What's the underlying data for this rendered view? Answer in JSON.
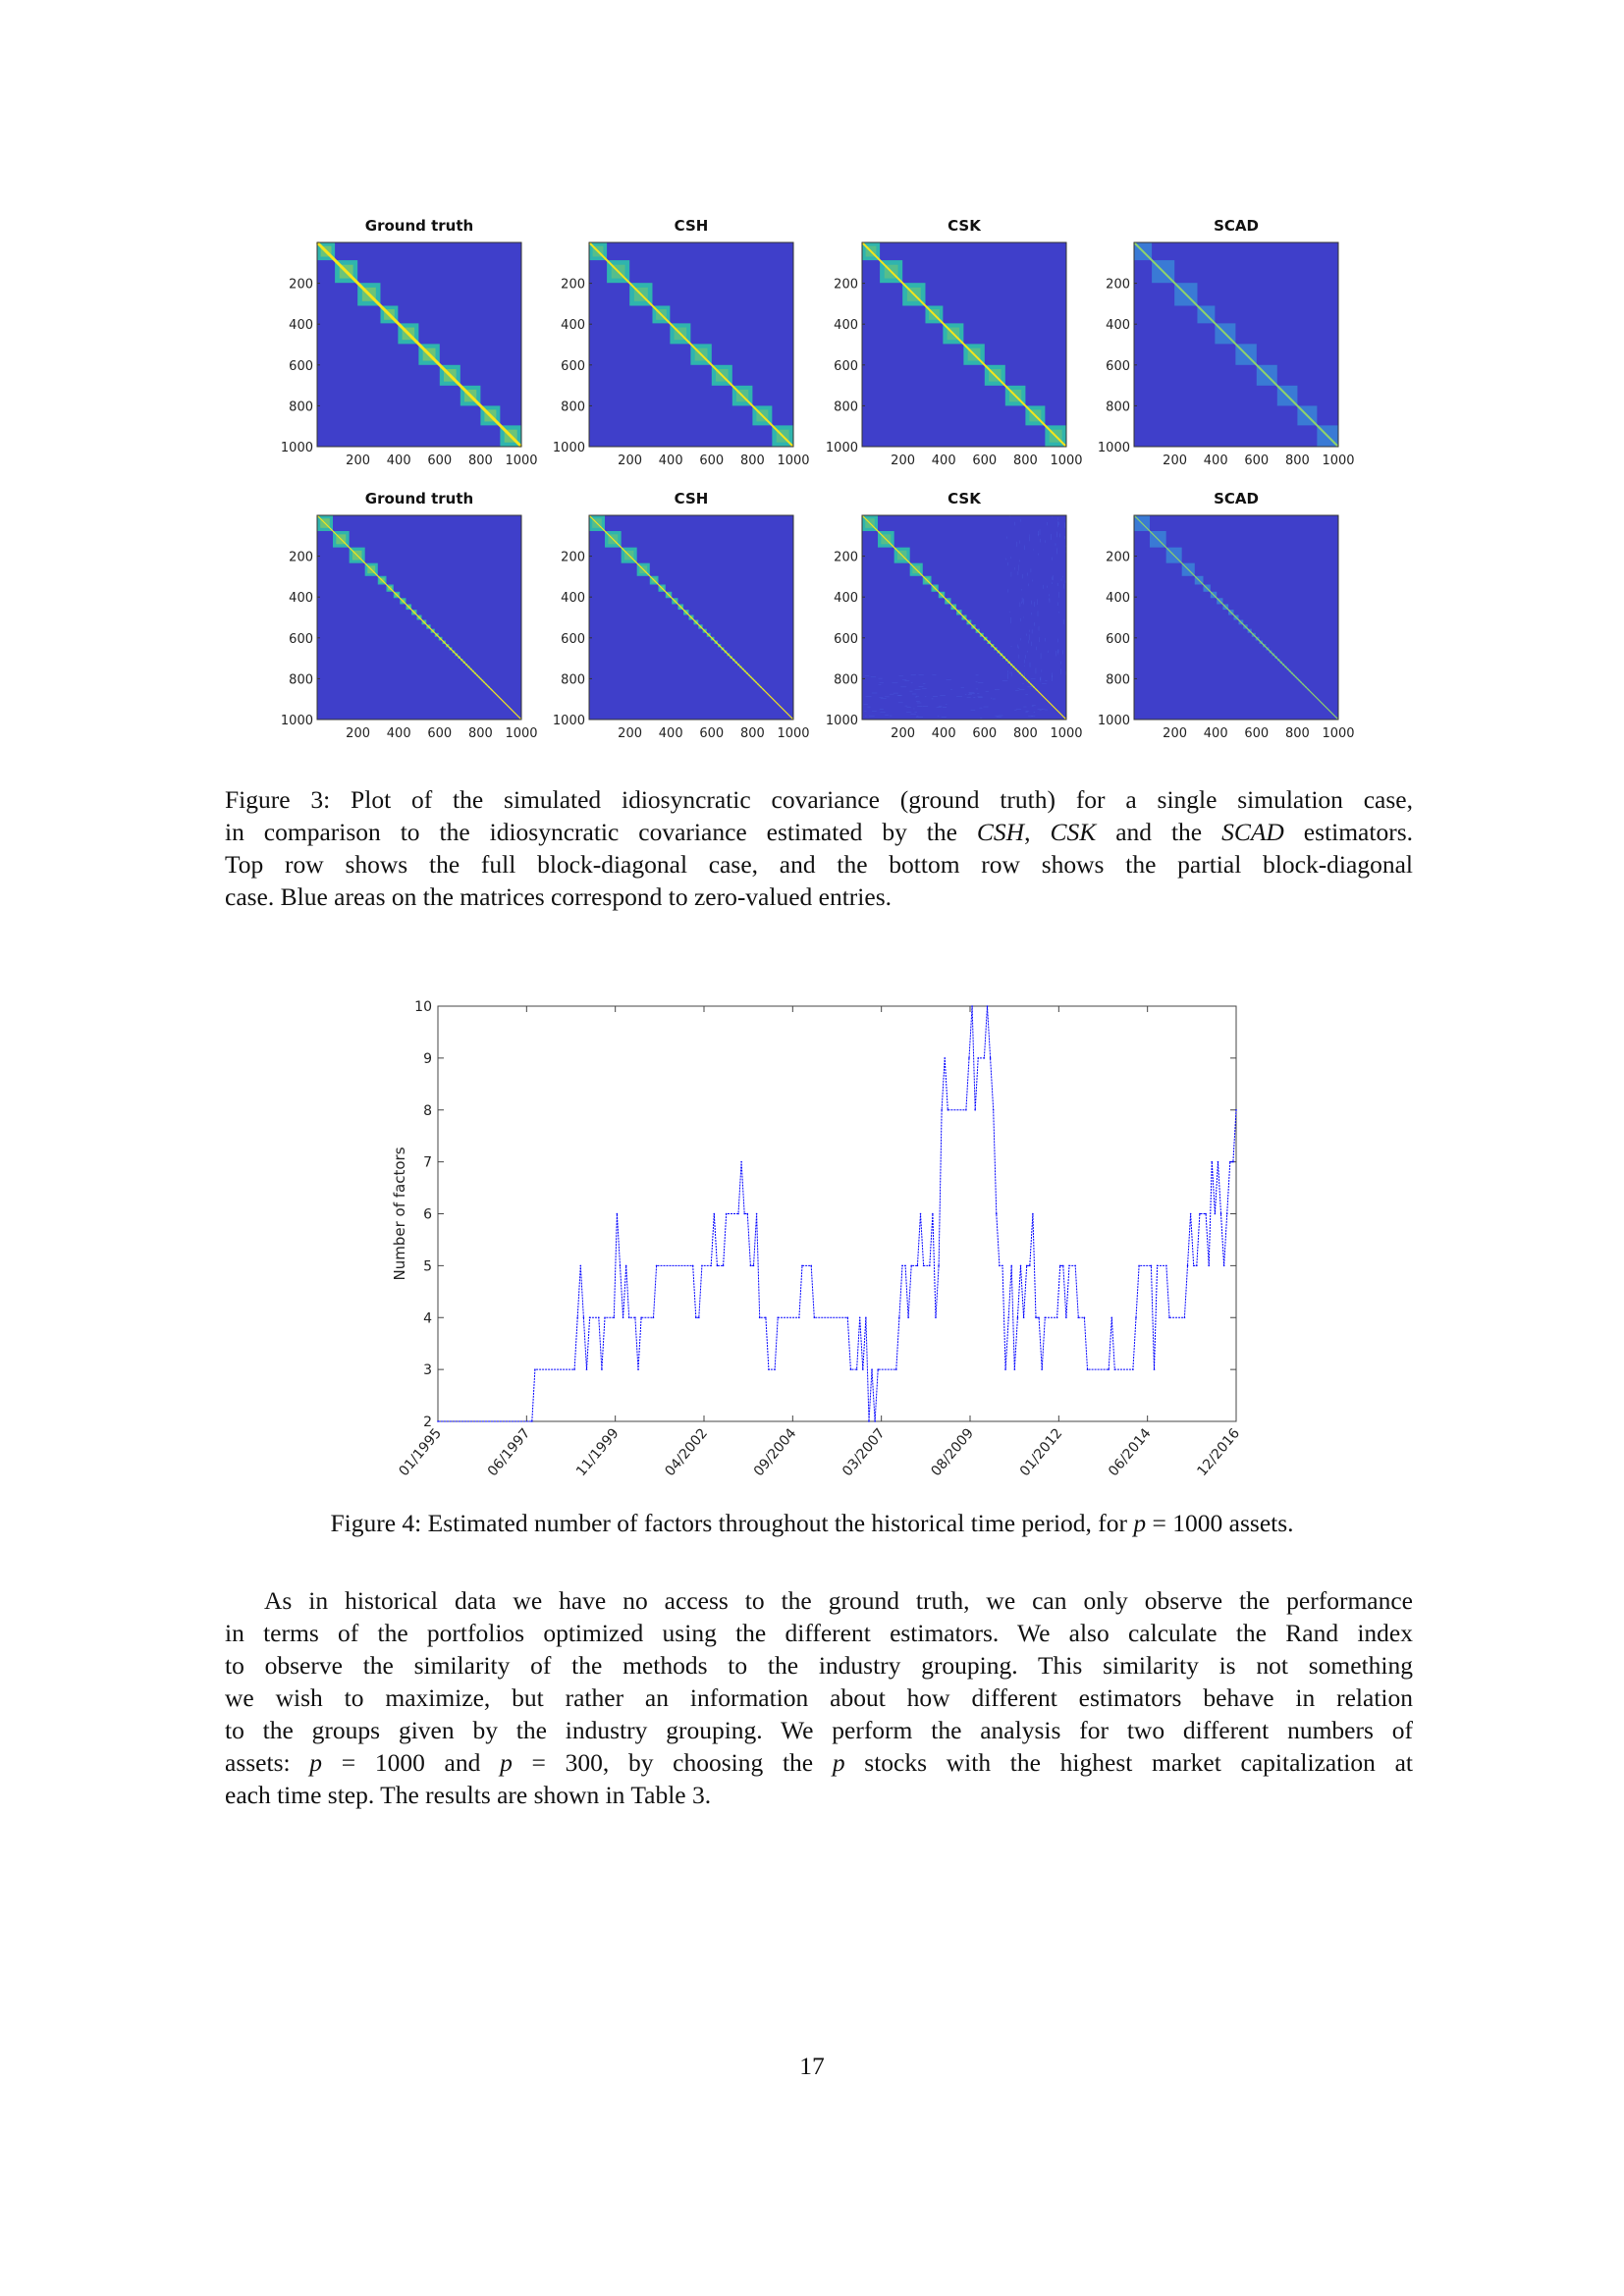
{
  "figure3": {
    "panels_top": [
      {
        "title": "Ground truth",
        "style": "truth"
      },
      {
        "title": "CSH",
        "style": "csh"
      },
      {
        "title": "CSK",
        "style": "csk"
      },
      {
        "title": "SCAD",
        "style": "scad"
      }
    ],
    "panels_bottom": [
      {
        "title": "Ground truth",
        "style": "truth"
      },
      {
        "title": "CSH",
        "style": "csh"
      },
      {
        "title": "CSK",
        "style": "csk"
      },
      {
        "title": "SCAD",
        "style": "scad"
      }
    ],
    "axis_ticks": [
      "200",
      "400",
      "600",
      "800",
      "1000"
    ],
    "block_edges_top": [
      0,
      87,
      198,
      310,
      396,
      497,
      600,
      701,
      800,
      896,
      1000
    ],
    "block_edges_bottom": [
      0,
      77,
      157,
      234,
      297,
      339,
      374,
      405,
      435,
      462,
      488,
      512,
      535,
      556,
      576,
      595,
      613,
      630,
      646,
      661,
      675,
      689,
      702,
      714,
      726,
      737,
      748,
      758,
      768,
      778,
      787,
      796,
      805,
      814,
      822,
      830,
      838,
      846,
      853,
      860
    ],
    "colors": {
      "zero": "#3f3fca",
      "mid": "#2fb4ae",
      "high": "#f5e51b",
      "low": "#3a8fd8"
    },
    "caption": {
      "l1": "Figure 3: Plot of the simulated idiosyncratic covariance (ground truth) for a single simulation case,",
      "l2a": "in comparison to the idiosyncratic covariance estimated by the ",
      "l2b": "CSH",
      "l2c": ", ",
      "l2d": "CSK",
      "l2e": " and the ",
      "l2f": "SCAD",
      "l2g": " estimators.",
      "l3": "Top row shows the full block-diagonal case, and the bottom row shows the partial block-diagonal",
      "l4": "case. Blue areas on the matrices correspond to zero-valued entries."
    }
  },
  "chart_data": {
    "type": "line",
    "title": "",
    "xlabel": "",
    "ylabel": "Number of factors",
    "ylim": [
      2,
      10
    ],
    "xlim_months_since_start": [
      0,
      263
    ],
    "yticks": [
      "2",
      "3",
      "4",
      "5",
      "6",
      "7",
      "8",
      "9",
      "10"
    ],
    "xtick_labels": [
      "01/1995",
      "06/1997",
      "11/1999",
      "04/2002",
      "09/2004",
      "03/2007",
      "08/2009",
      "01/2012",
      "06/2014",
      "12/2016"
    ],
    "series": [
      {
        "name": "Estimated number of factors",
        "color": "#0000ff",
        "x": [
          0,
          31,
          32,
          45,
          46,
          47,
          48,
          49,
          50,
          53,
          54,
          55,
          58,
          59,
          60,
          61,
          62,
          63,
          65,
          66,
          67,
          71,
          72,
          84,
          85,
          86,
          87,
          90,
          91,
          92,
          94,
          95,
          99,
          100,
          101,
          102,
          103,
          104,
          105,
          106,
          108,
          109,
          111,
          112,
          119,
          120,
          123,
          124,
          135,
          136,
          138,
          139,
          140,
          141,
          142,
          143,
          144,
          145,
          151,
          152,
          153,
          154,
          155,
          156,
          158,
          159,
          160,
          162,
          163,
          164,
          165,
          166,
          167,
          168,
          174,
          175,
          176,
          177,
          178,
          180,
          181,
          182,
          183,
          184,
          185,
          186,
          187,
          188,
          189,
          190,
          191,
          192,
          193,
          194,
          195,
          196,
          197,
          198,
          199,
          200,
          204,
          205,
          206,
          207,
          208,
          210,
          211,
          213,
          214,
          221,
          222,
          223,
          229,
          230,
          231,
          235,
          236,
          237,
          240,
          241,
          246,
          247,
          248,
          249,
          250,
          251,
          253,
          254,
          255,
          256,
          257,
          258,
          259,
          260,
          261,
          262,
          263
        ],
        "y": [
          2,
          2,
          3,
          3,
          4,
          5,
          4,
          3,
          4,
          4,
          3,
          4,
          4,
          6,
          5,
          4,
          5,
          4,
          4,
          3,
          4,
          4,
          5,
          5,
          4,
          4,
          5,
          5,
          6,
          5,
          5,
          6,
          6,
          7,
          6,
          6,
          5,
          5,
          6,
          4,
          4,
          3,
          3,
          4,
          4,
          5,
          5,
          4,
          4,
          3,
          3,
          4,
          3,
          4,
          2,
          3,
          2,
          3,
          3,
          4,
          5,
          5,
          4,
          5,
          5,
          6,
          5,
          5,
          6,
          4,
          5,
          8,
          9,
          8,
          8,
          9,
          10,
          8,
          9,
          9,
          10,
          9,
          8,
          6,
          5,
          5,
          3,
          4,
          5,
          3,
          4,
          5,
          4,
          5,
          5,
          6,
          4,
          4,
          3,
          4,
          4,
          5,
          5,
          4,
          5,
          5,
          4,
          4,
          3,
          3,
          4,
          3,
          3,
          4,
          5,
          5,
          3,
          5,
          5,
          4,
          4,
          5,
          6,
          5,
          5,
          6,
          6,
          5,
          7,
          6,
          7,
          6,
          5,
          6,
          7,
          7,
          8
        ]
      }
    ]
  },
  "figure4": {
    "caption_a": "Figure 4: Estimated number of factors throughout the historical time period, for ",
    "caption_p": "p",
    "caption_b": " = 1000 assets."
  },
  "paragraph": {
    "l1": "As in historical data we have no access to the ground truth, we can only observe the performance",
    "l2": "in terms of the portfolios optimized using the different estimators. We also calculate the Rand index",
    "l3": "to observe the similarity of the methods to the industry grouping. This similarity is not something",
    "l4": "we wish to maximize, but rather an information about how different estimators behave in relation",
    "l5": "to the groups given by the industry grouping. We perform the analysis for two different numbers of",
    "l6a": "assets: ",
    "l6p1": "p",
    "l6b": " = 1000 and ",
    "l6p2": "p",
    "l6c": " = 300, by choosing the ",
    "l6p3": "p",
    "l6d": " stocks with the highest market capitalization at",
    "l7": "each time step. The results are shown in Table 3."
  },
  "page_number": "17"
}
